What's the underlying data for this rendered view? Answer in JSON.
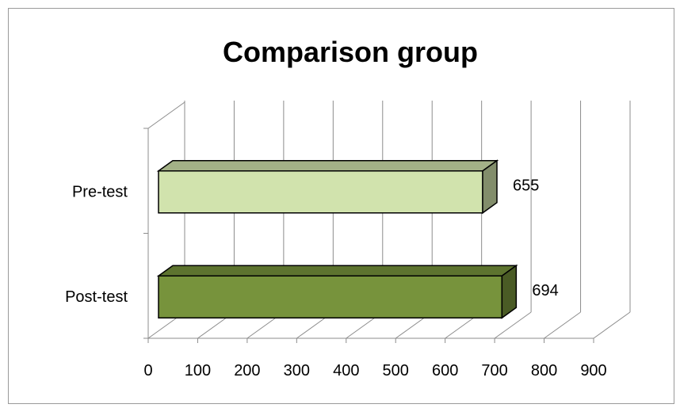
{
  "chart_data": {
    "type": "bar",
    "orientation": "horizontal",
    "title": "Comparison group",
    "categories": [
      "Pre-test",
      "Post-test"
    ],
    "values": [
      655,
      694
    ],
    "value_labels": [
      "655",
      "694"
    ],
    "xlabel": "",
    "ylabel": "",
    "xlim": [
      0,
      900
    ],
    "x_ticks": [
      "0",
      "100",
      "200",
      "300",
      "400",
      "500",
      "600",
      "700",
      "800",
      "900"
    ],
    "grid": true,
    "legend": "none",
    "three_d": true,
    "colors": [
      "#d1e3ad",
      "#77933c"
    ]
  }
}
